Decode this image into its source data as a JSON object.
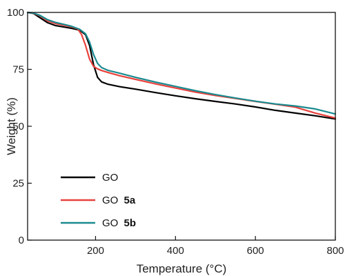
{
  "chart_data": {
    "type": "line",
    "title": "",
    "xlabel": "Temperature (°C)",
    "ylabel": "Weight (%)",
    "xlim": [
      30,
      800
    ],
    "ylim": [
      0,
      100
    ],
    "x_ticks": [
      200,
      400,
      600,
      800
    ],
    "y_ticks": [
      0,
      25,
      50,
      75,
      100
    ],
    "x_tick_labels": [
      "200",
      "400",
      "600",
      "800"
    ],
    "y_tick_labels": [
      "0",
      "25",
      "50",
      "75",
      "100"
    ],
    "grid": false,
    "legend_position": "bottom-left",
    "series": [
      {
        "name": "GO",
        "name_plain": "GO",
        "name_bold": "",
        "color": "#000000",
        "x": [
          30,
          45,
          60,
          80,
          100,
          120,
          140,
          160,
          175,
          185,
          195,
          205,
          215,
          230,
          260,
          300,
          350,
          400,
          450,
          500,
          550,
          600,
          650,
          700,
          750,
          800
        ],
        "y": [
          100,
          99.5,
          97.8,
          95.5,
          94.2,
          93.6,
          93.0,
          92.2,
          90.2,
          85.5,
          77.0,
          71.5,
          69.5,
          68.5,
          67.4,
          66.3,
          64.8,
          63.4,
          62.1,
          60.9,
          59.8,
          58.5,
          57.0,
          55.8,
          54.6,
          53.2
        ]
      },
      {
        "name": "GO 5a",
        "name_plain": "GO ",
        "name_bold": "5a",
        "color": "#e8413c",
        "x": [
          30,
          45,
          60,
          80,
          100,
          120,
          140,
          155,
          165,
          175,
          185,
          195,
          205,
          215,
          230,
          260,
          300,
          350,
          400,
          450,
          500,
          550,
          600,
          650,
          700,
          750,
          800
        ],
        "y": [
          100,
          99.6,
          98.6,
          96.3,
          95.1,
          94.4,
          93.7,
          92.8,
          90.3,
          85.5,
          79.5,
          76.3,
          75.2,
          74.5,
          73.7,
          72.2,
          70.6,
          68.6,
          66.8,
          65.0,
          63.5,
          62.2,
          60.9,
          59.7,
          58.4,
          55.8,
          53.6
        ]
      },
      {
        "name": "GO 5b",
        "name_plain": "GO ",
        "name_bold": "5b",
        "color": "#1a8a8f",
        "x": [
          30,
          45,
          60,
          80,
          100,
          120,
          140,
          160,
          175,
          185,
          195,
          205,
          215,
          230,
          260,
          300,
          350,
          400,
          450,
          500,
          550,
          600,
          650,
          700,
          750,
          800
        ],
        "y": [
          100,
          99.7,
          98.8,
          96.8,
          95.6,
          94.8,
          93.9,
          92.6,
          90.6,
          87.0,
          81.5,
          77.6,
          75.8,
          74.6,
          73.3,
          71.5,
          69.4,
          67.5,
          65.6,
          63.9,
          62.4,
          61.0,
          59.8,
          58.9,
          57.6,
          55.4
        ]
      }
    ]
  }
}
